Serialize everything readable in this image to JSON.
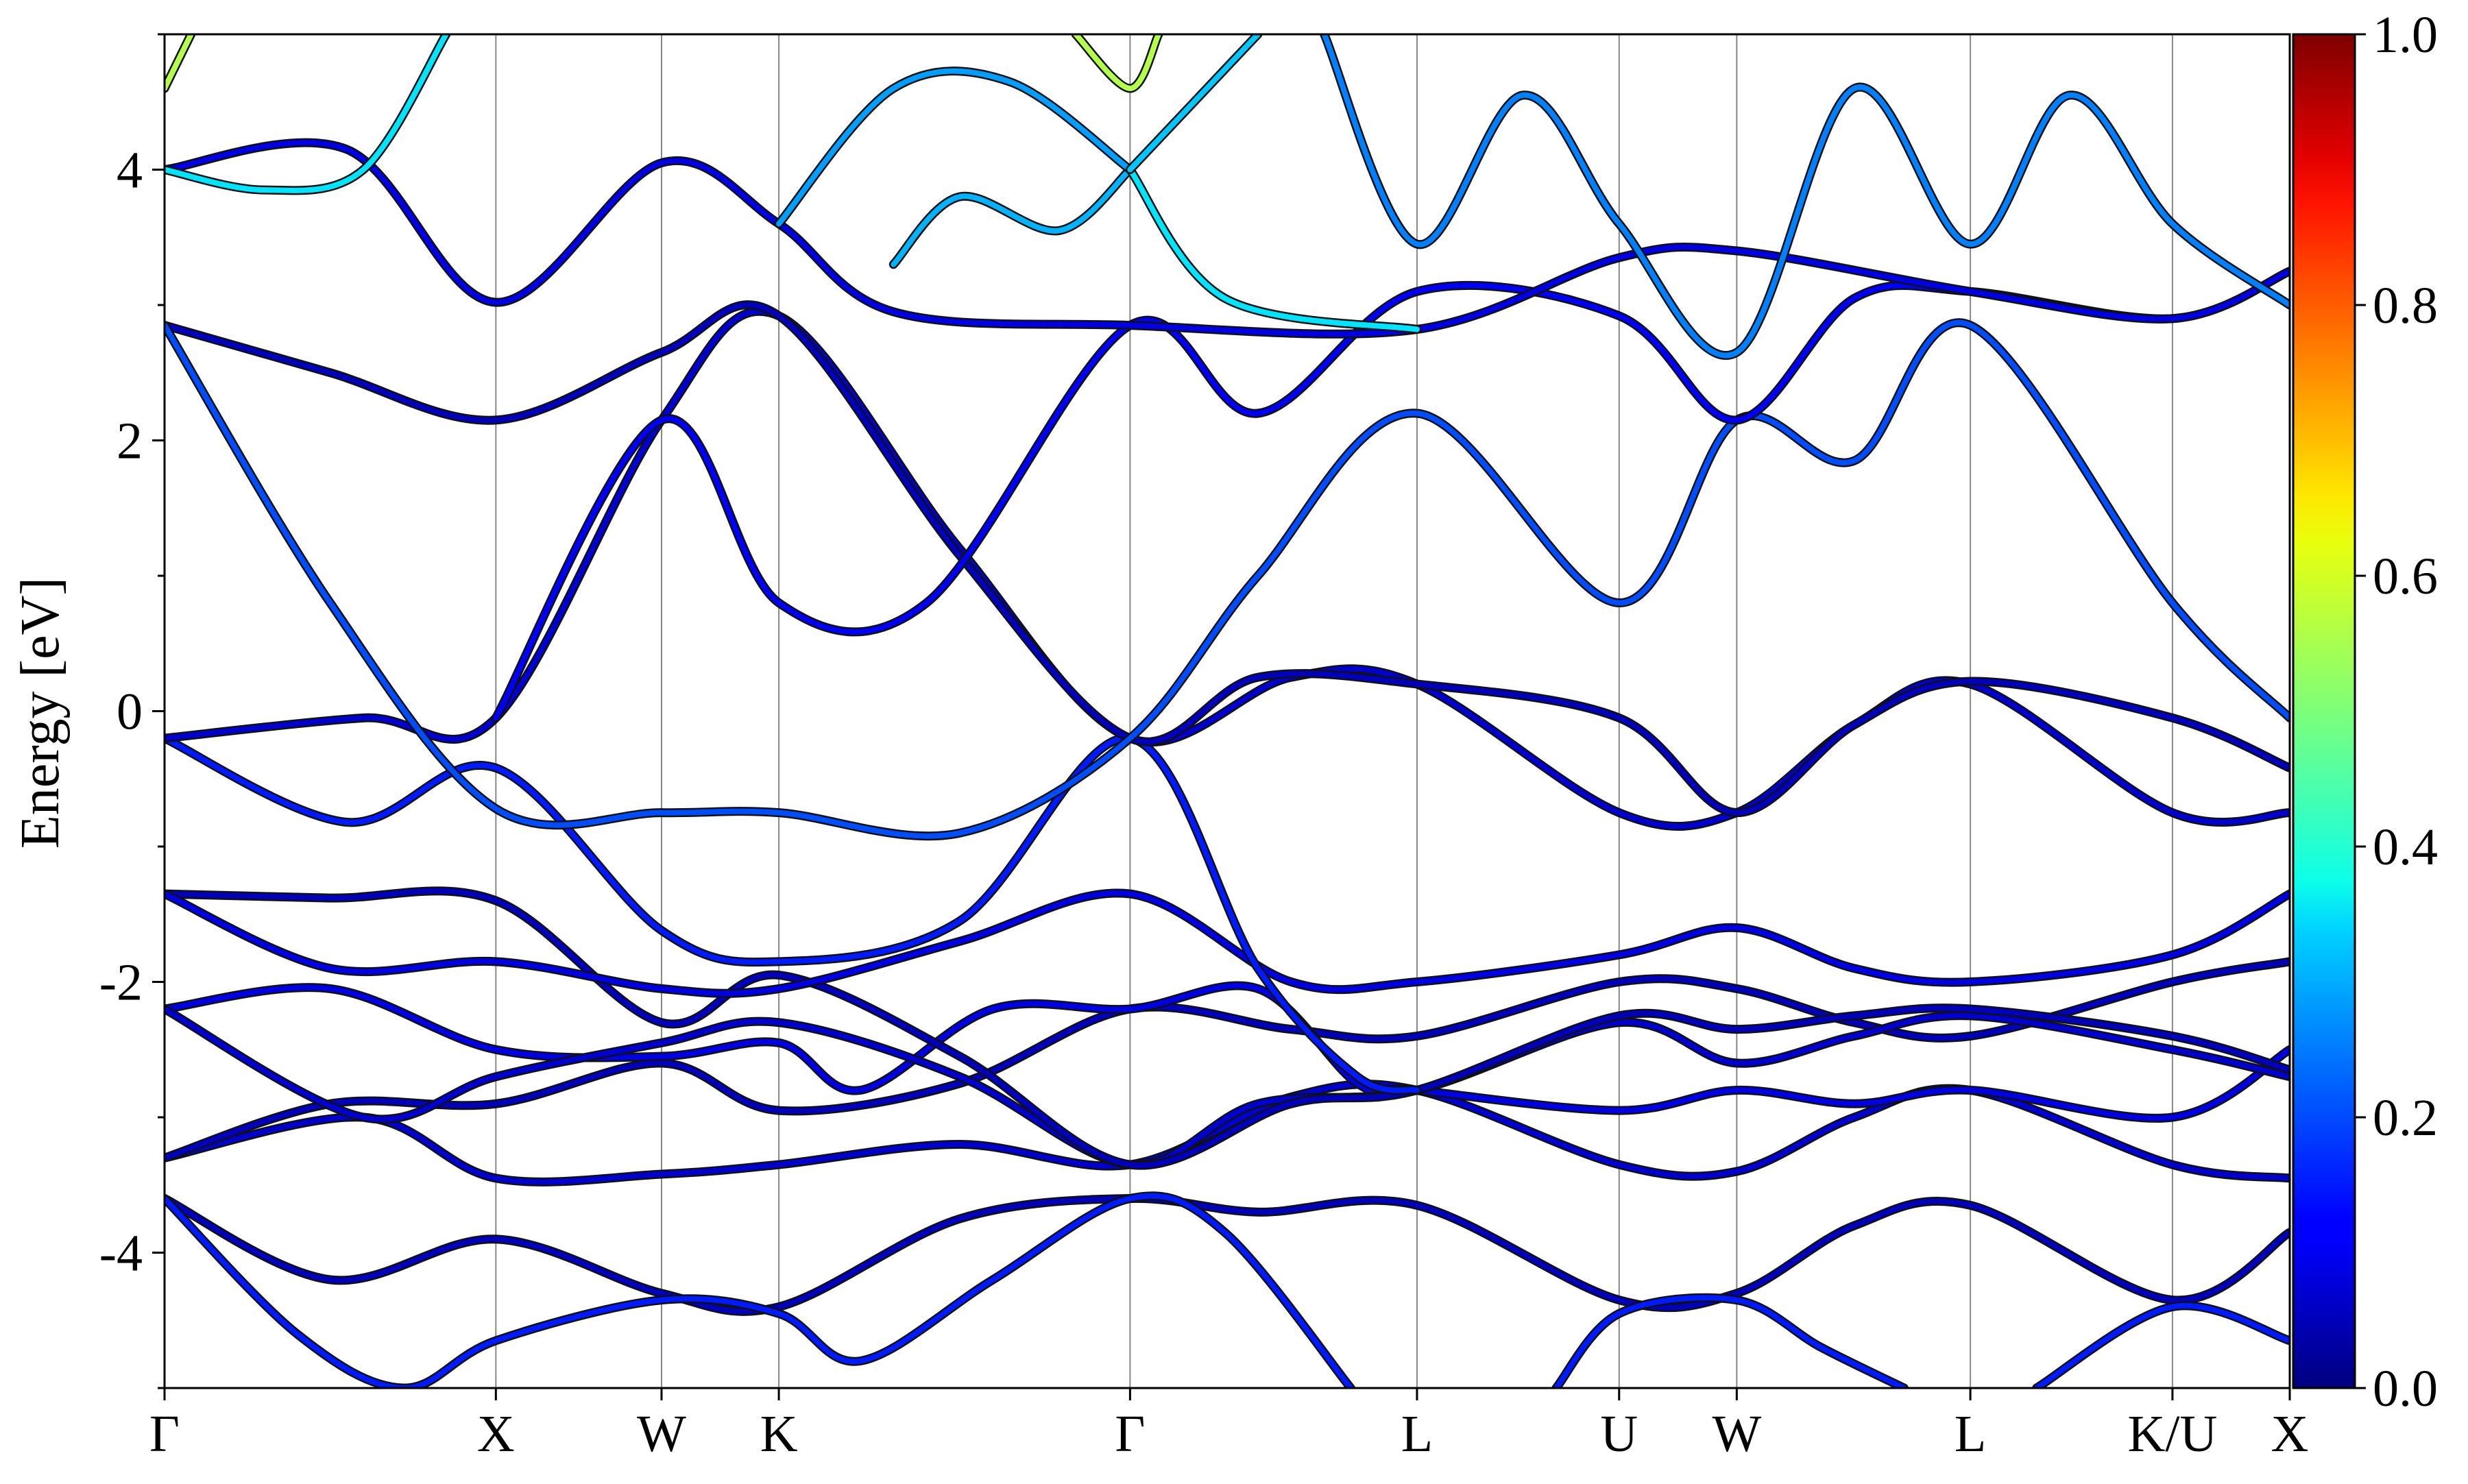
{
  "chart_data": {
    "type": "line",
    "title": "",
    "ylabel": "Energy [eV]",
    "xlabel": "",
    "ylim": [
      -5,
      5
    ],
    "yticks": [
      -4,
      -2,
      0,
      2,
      4
    ],
    "ytick_labels": [
      "-4",
      "-2",
      "0",
      "2",
      "4"
    ],
    "grid": "vertical lines at high-symmetry points",
    "legend": "none",
    "kpoints": {
      "labels": [
        "Γ",
        "X",
        "W",
        "K",
        "Γ",
        "L",
        "U",
        "W",
        "L",
        "K/U",
        "X"
      ],
      "positions": [
        0.0,
        1.0,
        1.5,
        1.854,
        2.914,
        3.78,
        4.39,
        4.745,
        5.45,
        6.06,
        6.414
      ]
    },
    "colorbar": {
      "colormap": "jet",
      "range": [
        0.0,
        1.0
      ],
      "ticks": [
        0.0,
        0.2,
        0.4,
        0.6,
        0.8,
        1.0
      ],
      "tick_labels": [
        "0.0",
        "0.2",
        "0.4",
        "0.6",
        "0.8",
        "1.0"
      ]
    },
    "series": [
      {
        "weight": 0.06,
        "points": [
          [
            0.0,
            -3.6
          ],
          [
            0.5,
            -4.2
          ],
          [
            1.0,
            -3.9
          ],
          [
            1.5,
            -4.3
          ],
          [
            1.854,
            -4.4
          ],
          [
            2.4,
            -3.75
          ],
          [
            2.914,
            -3.6
          ],
          [
            3.3,
            -3.7
          ],
          [
            3.78,
            -3.65
          ],
          [
            4.39,
            -4.35
          ],
          [
            4.745,
            -4.3
          ],
          [
            5.1,
            -3.8
          ],
          [
            5.45,
            -3.65
          ],
          [
            6.06,
            -4.35
          ],
          [
            6.414,
            -3.85
          ]
        ]
      },
      {
        "weight": 0.15,
        "points": [
          [
            0.0,
            -3.6
          ],
          [
            0.4,
            -4.6
          ],
          [
            0.72,
            -5.0
          ],
          [
            1.0,
            -4.65
          ],
          [
            1.5,
            -4.35
          ],
          [
            1.854,
            -4.45
          ],
          [
            2.1,
            -4.8
          ],
          [
            2.5,
            -4.2
          ],
          [
            2.914,
            -3.6
          ],
          [
            3.2,
            -3.85
          ],
          [
            3.58,
            -5.0
          ]
        ]
      },
      {
        "weight": 0.15,
        "points": [
          [
            4.2,
            -5.0
          ],
          [
            4.39,
            -4.45
          ],
          [
            4.745,
            -4.35
          ],
          [
            5.0,
            -4.7
          ],
          [
            5.25,
            -5.0
          ]
        ]
      },
      {
        "weight": 0.15,
        "points": [
          [
            5.65,
            -5.0
          ],
          [
            6.06,
            -4.4
          ],
          [
            6.414,
            -4.65
          ]
        ]
      },
      {
        "weight": 0.08,
        "points": [
          [
            0.0,
            -3.3
          ],
          [
            0.6,
            -3.0
          ],
          [
            1.0,
            -3.45
          ],
          [
            1.5,
            -3.42
          ],
          [
            1.854,
            -3.35
          ],
          [
            2.4,
            -3.2
          ],
          [
            2.914,
            -3.35
          ],
          [
            3.4,
            -2.85
          ],
          [
            3.78,
            -2.8
          ],
          [
            4.39,
            -3.35
          ],
          [
            4.745,
            -3.4
          ],
          [
            5.1,
            -3.0
          ],
          [
            5.45,
            -2.8
          ],
          [
            6.06,
            -3.35
          ],
          [
            6.414,
            -3.45
          ]
        ]
      },
      {
        "weight": 0.06,
        "points": [
          [
            0.0,
            -3.3
          ],
          [
            0.5,
            -2.9
          ],
          [
            1.0,
            -2.9
          ],
          [
            1.5,
            -2.6
          ],
          [
            1.854,
            -2.95
          ],
          [
            2.4,
            -2.75
          ],
          [
            2.914,
            -2.2
          ],
          [
            3.4,
            -2.35
          ],
          [
            3.78,
            -2.4
          ],
          [
            4.39,
            -2.0
          ],
          [
            4.745,
            -2.05
          ],
          [
            5.1,
            -2.3
          ],
          [
            5.45,
            -2.4
          ],
          [
            6.06,
            -2.0
          ],
          [
            6.414,
            -1.85
          ]
        ]
      },
      {
        "weight": 0.1,
        "points": [
          [
            0.0,
            -2.2
          ],
          [
            0.5,
            -2.05
          ],
          [
            1.0,
            -2.5
          ],
          [
            1.5,
            -2.55
          ],
          [
            1.854,
            -2.45
          ],
          [
            2.1,
            -2.8
          ],
          [
            2.5,
            -2.2
          ],
          [
            2.914,
            -2.2
          ],
          [
            3.3,
            -2.05
          ],
          [
            3.6,
            -2.75
          ],
          [
            3.78,
            -2.8
          ],
          [
            4.39,
            -2.95
          ],
          [
            4.745,
            -2.8
          ],
          [
            5.1,
            -2.9
          ],
          [
            5.45,
            -2.8
          ],
          [
            6.06,
            -3.0
          ],
          [
            6.414,
            -2.5
          ]
        ]
      },
      {
        "weight": 0.08,
        "points": [
          [
            0.0,
            -2.2
          ],
          [
            0.6,
            -3.0
          ],
          [
            1.0,
            -2.7
          ],
          [
            1.5,
            -2.45
          ],
          [
            1.854,
            -2.3
          ],
          [
            2.4,
            -2.7
          ],
          [
            2.914,
            -3.35
          ],
          [
            3.3,
            -2.9
          ],
          [
            3.78,
            -2.8
          ],
          [
            4.39,
            -2.3
          ],
          [
            4.745,
            -2.6
          ],
          [
            5.1,
            -2.4
          ],
          [
            5.45,
            -2.25
          ],
          [
            6.06,
            -2.5
          ],
          [
            6.414,
            -2.7
          ]
        ]
      },
      {
        "weight": 0.06,
        "points": [
          [
            0.0,
            -1.35
          ],
          [
            0.5,
            -1.38
          ],
          [
            1.0,
            -1.4
          ],
          [
            1.5,
            -2.3
          ],
          [
            1.854,
            -1.95
          ],
          [
            2.4,
            -2.55
          ],
          [
            2.914,
            -3.35
          ],
          [
            3.4,
            -2.9
          ],
          [
            3.78,
            -2.8
          ],
          [
            4.39,
            -2.25
          ],
          [
            4.745,
            -2.35
          ],
          [
            5.1,
            -2.25
          ],
          [
            5.45,
            -2.2
          ],
          [
            6.06,
            -2.4
          ],
          [
            6.414,
            -2.65
          ]
        ]
      },
      {
        "weight": 0.1,
        "points": [
          [
            0.0,
            -1.35
          ],
          [
            0.5,
            -1.9
          ],
          [
            1.0,
            -1.85
          ],
          [
            1.5,
            -2.05
          ],
          [
            1.854,
            -2.05
          ],
          [
            2.4,
            -1.7
          ],
          [
            2.914,
            -1.35
          ],
          [
            3.4,
            -2.0
          ],
          [
            3.78,
            -2.0
          ],
          [
            4.39,
            -1.8
          ],
          [
            4.745,
            -1.6
          ],
          [
            5.1,
            -1.9
          ],
          [
            5.45,
            -2.0
          ],
          [
            6.06,
            -1.8
          ],
          [
            6.414,
            -1.35
          ]
        ]
      },
      {
        "weight": 0.15,
        "points": [
          [
            0.0,
            -0.2
          ],
          [
            0.55,
            -0.82
          ],
          [
            1.0,
            -0.42
          ],
          [
            1.5,
            -1.62
          ],
          [
            1.854,
            -1.85
          ],
          [
            2.4,
            -1.55
          ],
          [
            2.914,
            -0.2
          ],
          [
            3.3,
            -1.9
          ],
          [
            3.6,
            -2.7
          ],
          [
            3.78,
            -2.8
          ]
        ]
      },
      {
        "weight": 0.08,
        "points": [
          [
            0.0,
            -0.2
          ],
          [
            0.6,
            -0.05
          ],
          [
            1.0,
            -0.05
          ],
          [
            1.5,
            2.15
          ],
          [
            1.854,
            2.92
          ],
          [
            2.4,
            1.2
          ],
          [
            2.914,
            -0.2
          ],
          [
            3.4,
            0.25
          ],
          [
            3.78,
            0.2
          ],
          [
            4.39,
            -0.75
          ],
          [
            4.745,
            -0.75
          ],
          [
            5.1,
            -0.1
          ],
          [
            5.45,
            0.2
          ],
          [
            6.06,
            -0.75
          ],
          [
            6.414,
            -0.75
          ]
        ]
      },
      {
        "weight": 0.06,
        "points": [
          [
            0.0,
            2.85
          ],
          [
            0.5,
            2.5
          ],
          [
            1.0,
            2.15
          ],
          [
            1.5,
            2.65
          ],
          [
            1.854,
            2.92
          ],
          [
            2.4,
            1.15
          ],
          [
            2.914,
            -0.2
          ],
          [
            3.3,
            0.25
          ],
          [
            3.78,
            0.2
          ],
          [
            4.39,
            -0.05
          ],
          [
            4.745,
            -0.75
          ],
          [
            5.1,
            -0.1
          ],
          [
            5.45,
            0.22
          ],
          [
            6.06,
            -0.05
          ],
          [
            6.414,
            -0.42
          ]
        ]
      },
      {
        "weight": 0.2,
        "points": [
          [
            0.0,
            2.85
          ],
          [
            0.5,
            0.8
          ],
          [
            1.0,
            -0.72
          ],
          [
            1.5,
            -0.75
          ],
          [
            1.854,
            -0.75
          ],
          [
            2.4,
            -0.9
          ],
          [
            2.914,
            -0.2
          ],
          [
            3.3,
            1.0
          ],
          [
            3.78,
            2.2
          ],
          [
            4.39,
            0.8
          ],
          [
            4.745,
            2.15
          ],
          [
            5.1,
            1.85
          ],
          [
            5.45,
            2.85
          ],
          [
            6.06,
            0.8
          ],
          [
            6.414,
            -0.05
          ]
        ]
      },
      {
        "weight": 0.12,
        "points": [
          [
            1.0,
            -0.05
          ],
          [
            1.5,
            2.15
          ],
          [
            1.854,
            0.8
          ],
          [
            2.3,
            0.8
          ],
          [
            2.914,
            2.85
          ],
          [
            3.3,
            2.2
          ],
          [
            3.78,
            3.1
          ],
          [
            4.39,
            2.92
          ],
          [
            4.745,
            2.15
          ],
          [
            5.1,
            3.05
          ],
          [
            5.45,
            3.1
          ],
          [
            6.06,
            2.9
          ],
          [
            6.414,
            3.25
          ]
        ]
      },
      {
        "weight": 0.1,
        "points": [
          [
            0.0,
            4.0
          ],
          [
            0.55,
            4.15
          ],
          [
            1.0,
            3.02
          ],
          [
            1.5,
            4.05
          ],
          [
            1.854,
            3.6
          ],
          [
            2.2,
            2.95
          ],
          [
            2.914,
            2.85
          ],
          [
            3.78,
            2.82
          ],
          [
            4.39,
            3.35
          ],
          [
            4.745,
            3.4
          ],
          [
            5.45,
            3.1
          ],
          [
            6.06,
            2.9
          ],
          [
            6.414,
            3.25
          ]
        ]
      },
      {
        "weight": 0.35,
        "points": [
          [
            0.0,
            4.0
          ],
          [
            0.3,
            3.85
          ],
          [
            0.6,
            4.0
          ],
          [
            0.85,
            5.0
          ]
        ]
      },
      {
        "weight": 0.3,
        "points": [
          [
            2.914,
            4.0
          ],
          [
            2.7,
            3.55
          ],
          [
            2.4,
            3.8
          ],
          [
            2.2,
            3.3
          ]
        ]
      },
      {
        "weight": 0.35,
        "points": [
          [
            2.914,
            4.0
          ],
          [
            3.2,
            3.05
          ],
          [
            3.78,
            2.82
          ]
        ]
      },
      {
        "weight": 0.28,
        "points": [
          [
            1.854,
            3.6
          ],
          [
            2.2,
            4.6
          ],
          [
            2.55,
            4.65
          ],
          [
            2.914,
            4.0
          ]
        ]
      },
      {
        "weight": 0.32,
        "points": [
          [
            2.914,
            4.0
          ],
          [
            3.3,
            5.0
          ]
        ]
      },
      {
        "weight": 0.55,
        "points": [
          [
            2.75,
            5.0
          ],
          [
            2.914,
            4.6
          ],
          [
            3.0,
            5.0
          ]
        ]
      },
      {
        "weight": 0.55,
        "points": [
          [
            0.0,
            4.6
          ],
          [
            0.08,
            5.0
          ]
        ]
      },
      {
        "weight": 0.25,
        "points": [
          [
            3.5,
            5.0
          ],
          [
            3.78,
            3.45
          ],
          [
            4.1,
            4.55
          ],
          [
            4.39,
            3.6
          ],
          [
            4.745,
            2.65
          ],
          [
            5.1,
            4.6
          ],
          [
            5.45,
            3.45
          ],
          [
            5.75,
            4.55
          ],
          [
            6.06,
            3.6
          ],
          [
            6.414,
            3.0
          ]
        ]
      }
    ]
  }
}
